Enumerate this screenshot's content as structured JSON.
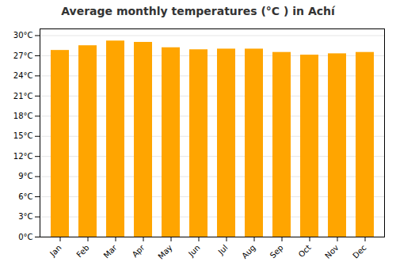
{
  "chart_data": {
    "type": "bar",
    "title": "Average monthly temperatures (°C ) in Achí",
    "categories": [
      "Jan",
      "Feb",
      "Mar",
      "Apr",
      "May",
      "Jun",
      "Jul",
      "Aug",
      "Sep",
      "Oct",
      "Nov",
      "Dec"
    ],
    "values": [
      27.8,
      28.5,
      29.2,
      29.0,
      28.2,
      27.9,
      28.0,
      28.0,
      27.5,
      27.1,
      27.3,
      27.5
    ],
    "color": "#FFA500",
    "ylim": [
      0,
      31
    ],
    "yticks": [
      {
        "value": 0,
        "label": "0°C"
      },
      {
        "value": 3,
        "label": "3°C"
      },
      {
        "value": 6,
        "label": "6°C"
      },
      {
        "value": 9,
        "label": "9°C"
      },
      {
        "value": 12,
        "label": "12°C"
      },
      {
        "value": 15,
        "label": "15°C"
      },
      {
        "value": 18,
        "label": "18°C"
      },
      {
        "value": 21,
        "label": "21°C"
      },
      {
        "value": 24,
        "label": "24°C"
      },
      {
        "value": 27,
        "label": "27°C"
      },
      {
        "value": 30,
        "label": "30°C"
      }
    ],
    "grid": true
  }
}
